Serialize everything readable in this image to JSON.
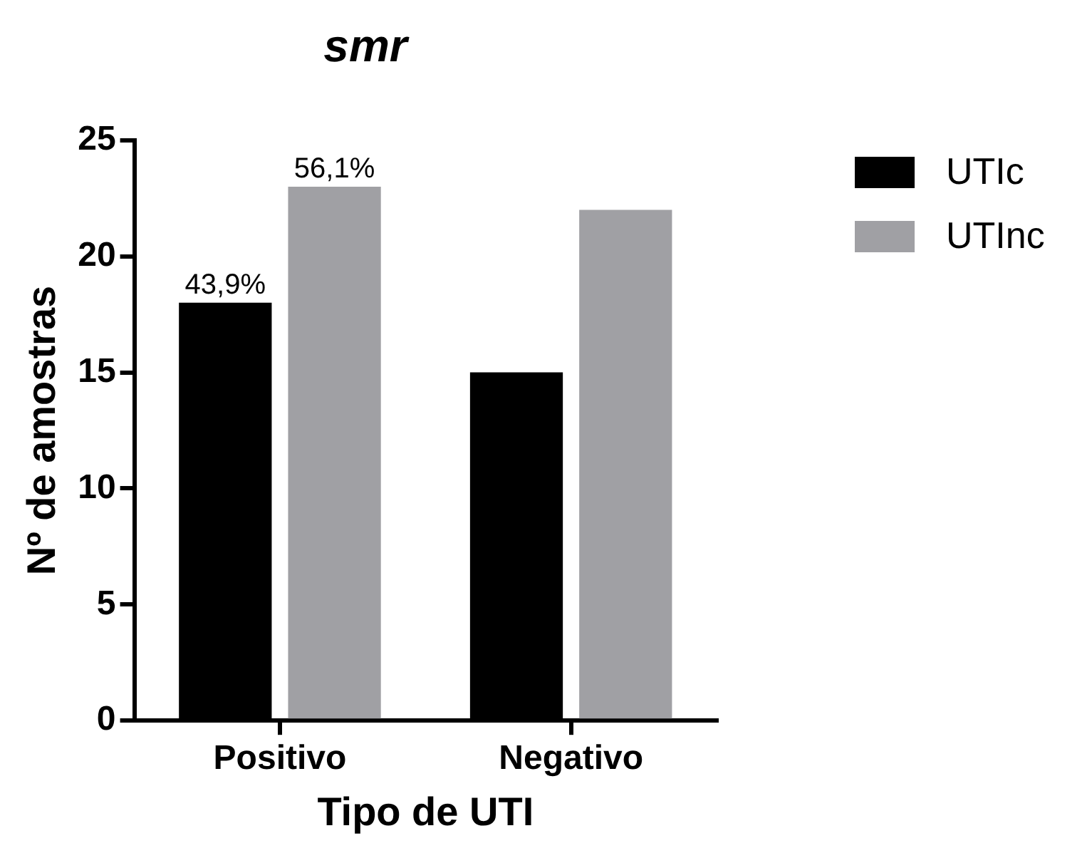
{
  "chart_data": {
    "type": "bar",
    "title": "smr",
    "xlabel": "Tipo de UTI",
    "ylabel": "Nº de amostras",
    "categories": [
      "Positivo",
      "Negativo"
    ],
    "series": [
      {
        "name": "UTIc",
        "color": "#000000",
        "values": [
          18,
          15
        ]
      },
      {
        "name": "UTInc",
        "color": "#a0a0a4",
        "values": [
          23,
          22
        ]
      }
    ],
    "annotations": [
      "43,9%",
      "56,1%"
    ],
    "ylim": [
      0,
      25
    ],
    "yticks": [
      0,
      5,
      10,
      15,
      20,
      25
    ],
    "grid": false,
    "legend": "top right"
  }
}
